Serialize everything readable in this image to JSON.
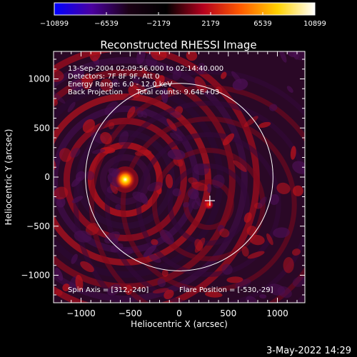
{
  "colorbar": {
    "ticks": [
      "−10899",
      "−6539",
      "−2179",
      "2179",
      "6539",
      "10899"
    ],
    "min": -10899,
    "max": 10899,
    "colors": [
      "#0000ff",
      "#4b00a0",
      "#1a0014",
      "#000000",
      "#b4001e",
      "#ff5a00",
      "#ffd200",
      "#ffffff"
    ]
  },
  "chart_data": {
    "type": "heatmap",
    "title": "Reconstructed RHESSI Image",
    "xlabel": "Heliocentric X (arcsec)",
    "ylabel": "Heliocentric Y (arcsec)",
    "xlim": [
      -1280,
      1280
    ],
    "ylim": [
      -1280,
      1280
    ],
    "xticks": [
      "−1000",
      "−500",
      "0",
      "500",
      "1000"
    ],
    "xtick_values": [
      -1000,
      -500,
      0,
      500,
      1000
    ],
    "yticks": [
      "1000",
      "500",
      "0",
      "−500",
      "−1000"
    ],
    "ytick_values": [
      1000,
      500,
      0,
      -500,
      -1000
    ],
    "info_lines": [
      "13-Sep-2004 02:09:56.000 to 02:14:40.000",
      "Detectors: 7F 8F 9F, Att 0",
      "Energy Range: 6.0 - 12.0 keV",
      "Back Projection      Total counts: 9.64E+03"
    ],
    "spin_axis": "Spin Axis = [312,-240]",
    "flare_position": "Flare Position = [-530,-29]",
    "solar_limb_radius": 955,
    "spin_axis_xy": [
      312,
      -240
    ],
    "sources": [
      {
        "x": -550,
        "y": -25,
        "peak": 10899
      },
      {
        "x": 300,
        "y": -280,
        "peak": 5000
      }
    ]
  },
  "footer": {
    "date": "3-May-2022 14:29"
  }
}
